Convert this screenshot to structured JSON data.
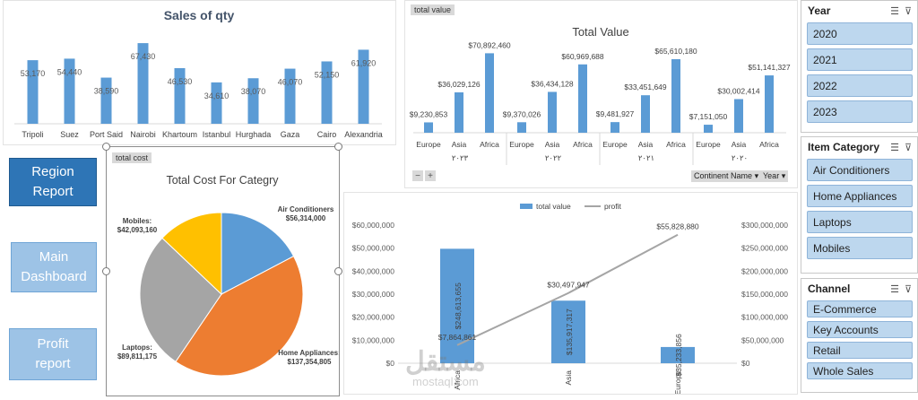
{
  "nav": {
    "region_report": "Region Report",
    "main_dashboard": "Main Dashboard",
    "profit_report": "Profit report"
  },
  "tags": {
    "total_value": "total value",
    "total_cost": "total cost"
  },
  "pivot": {
    "continent_btn": "Continent Name",
    "year_btn": "Year",
    "minus": "−",
    "plus": "+"
  },
  "slicers": {
    "year": {
      "title": "Year",
      "items": [
        "2020",
        "2021",
        "2022",
        "2023"
      ]
    },
    "category": {
      "title": "Item Category",
      "items": [
        "Air Conditioners",
        "Home Appliances",
        "Laptops",
        "Mobiles"
      ]
    },
    "channel": {
      "title": "Channel",
      "items": [
        "E-Commerce",
        "Key Accounts",
        "Retail",
        "Whole Sales"
      ]
    }
  },
  "watermark": {
    "arabic": "مستقل",
    "latin": "mostaql.com"
  },
  "colors": {
    "blue": "#5b9bd5",
    "orange": "#ed7d31",
    "gray": "#a5a5a5",
    "yellow": "#ffc000",
    "line": "#a5a5a5"
  },
  "chart_data": [
    {
      "id": "sales-qty",
      "type": "bar",
      "title": "Sales of qty",
      "categories": [
        "Tripoli",
        "Suez",
        "Port Said",
        "Nairobi",
        "Khartoum",
        "Istanbul",
        "Hurghada",
        "Gaza",
        "Cairo",
        "Alexandria"
      ],
      "values": [
        53170,
        54440,
        38590,
        67430,
        46530,
        34610,
        38070,
        46070,
        52150,
        61920
      ],
      "labels": [
        "53,170",
        "54,440",
        "38,590",
        "67,430",
        "46,530",
        "34,610",
        "38,070",
        "46,070",
        "52,150",
        "61,920"
      ],
      "ylim": [
        0,
        75000
      ]
    },
    {
      "id": "total-value",
      "type": "bar",
      "title": "Total Value",
      "groups": [
        "٢٠٢٣",
        "٢٠٢٢",
        "٢٠٢١",
        "٢٠٢٠"
      ],
      "categories": [
        "Europe",
        "Asia",
        "Africa"
      ],
      "values": [
        [
          9230853,
          36029126,
          70892460
        ],
        [
          9370026,
          36434128,
          60969688
        ],
        [
          9481927,
          33451649,
          65610180
        ],
        [
          7151050,
          30002414,
          51141327
        ]
      ],
      "labels": [
        [
          "$9,230,853",
          "$36,029,126",
          "$70,892,460"
        ],
        [
          "$9,370,026",
          "$36,434,128",
          "$60,969,688"
        ],
        [
          "$9,481,927",
          "$33,451,649",
          "$65,610,180"
        ],
        [
          "$7,151,050",
          "$30,002,414",
          "$51,141,327"
        ]
      ],
      "ylim": [
        0,
        80000000
      ]
    },
    {
      "id": "cost-category",
      "type": "pie",
      "title": "Total  Cost For Categry",
      "slices": [
        {
          "name": "Air Conditioners",
          "value": 56314000,
          "label_name": "Air Conditioners",
          "label_value": "$56,314,000"
        },
        {
          "name": "Home Appliances",
          "value": 137354805,
          "label_name": "Home Appliances:",
          "label_value": "$137,354,805"
        },
        {
          "name": "Laptops",
          "value": 89811175,
          "label_name": "Laptops:",
          "label_value": "$89,811,175"
        },
        {
          "name": "Mobiles",
          "value": 42093160,
          "label_name": "Mobiles:",
          "label_value": "$42,093,160"
        }
      ]
    },
    {
      "id": "value-profit",
      "type": "bar",
      "legend": [
        "total value",
        "profit"
      ],
      "categories": [
        "Africa",
        "Asia",
        "Europe"
      ],
      "series": [
        {
          "name": "total value",
          "type": "bar",
          "values": [
            248613655,
            135917317,
            35233856
          ],
          "labels": [
            "$248,613,655",
            "$135,917,317",
            "$35,233,856"
          ]
        },
        {
          "name": "profit",
          "type": "line",
          "values": [
            7864861,
            30497947,
            55828880
          ],
          "labels": [
            "$7,864,861",
            "$30,497,947",
            "$55,828,880"
          ]
        }
      ],
      "y_left_ticks": [
        "$0",
        "$10,000,000",
        "$20,000,000",
        "$30,000,000",
        "$40,000,000",
        "$50,000,000",
        "$60,000,000"
      ],
      "y_right_ticks": [
        "$0",
        "$50,000,000",
        "$100,000,000",
        "$150,000,000",
        "$200,000,000",
        "$250,000,000",
        "$300,000,000"
      ],
      "ylim_left": [
        0,
        60000000
      ],
      "ylim_right": [
        0,
        300000000
      ]
    }
  ]
}
